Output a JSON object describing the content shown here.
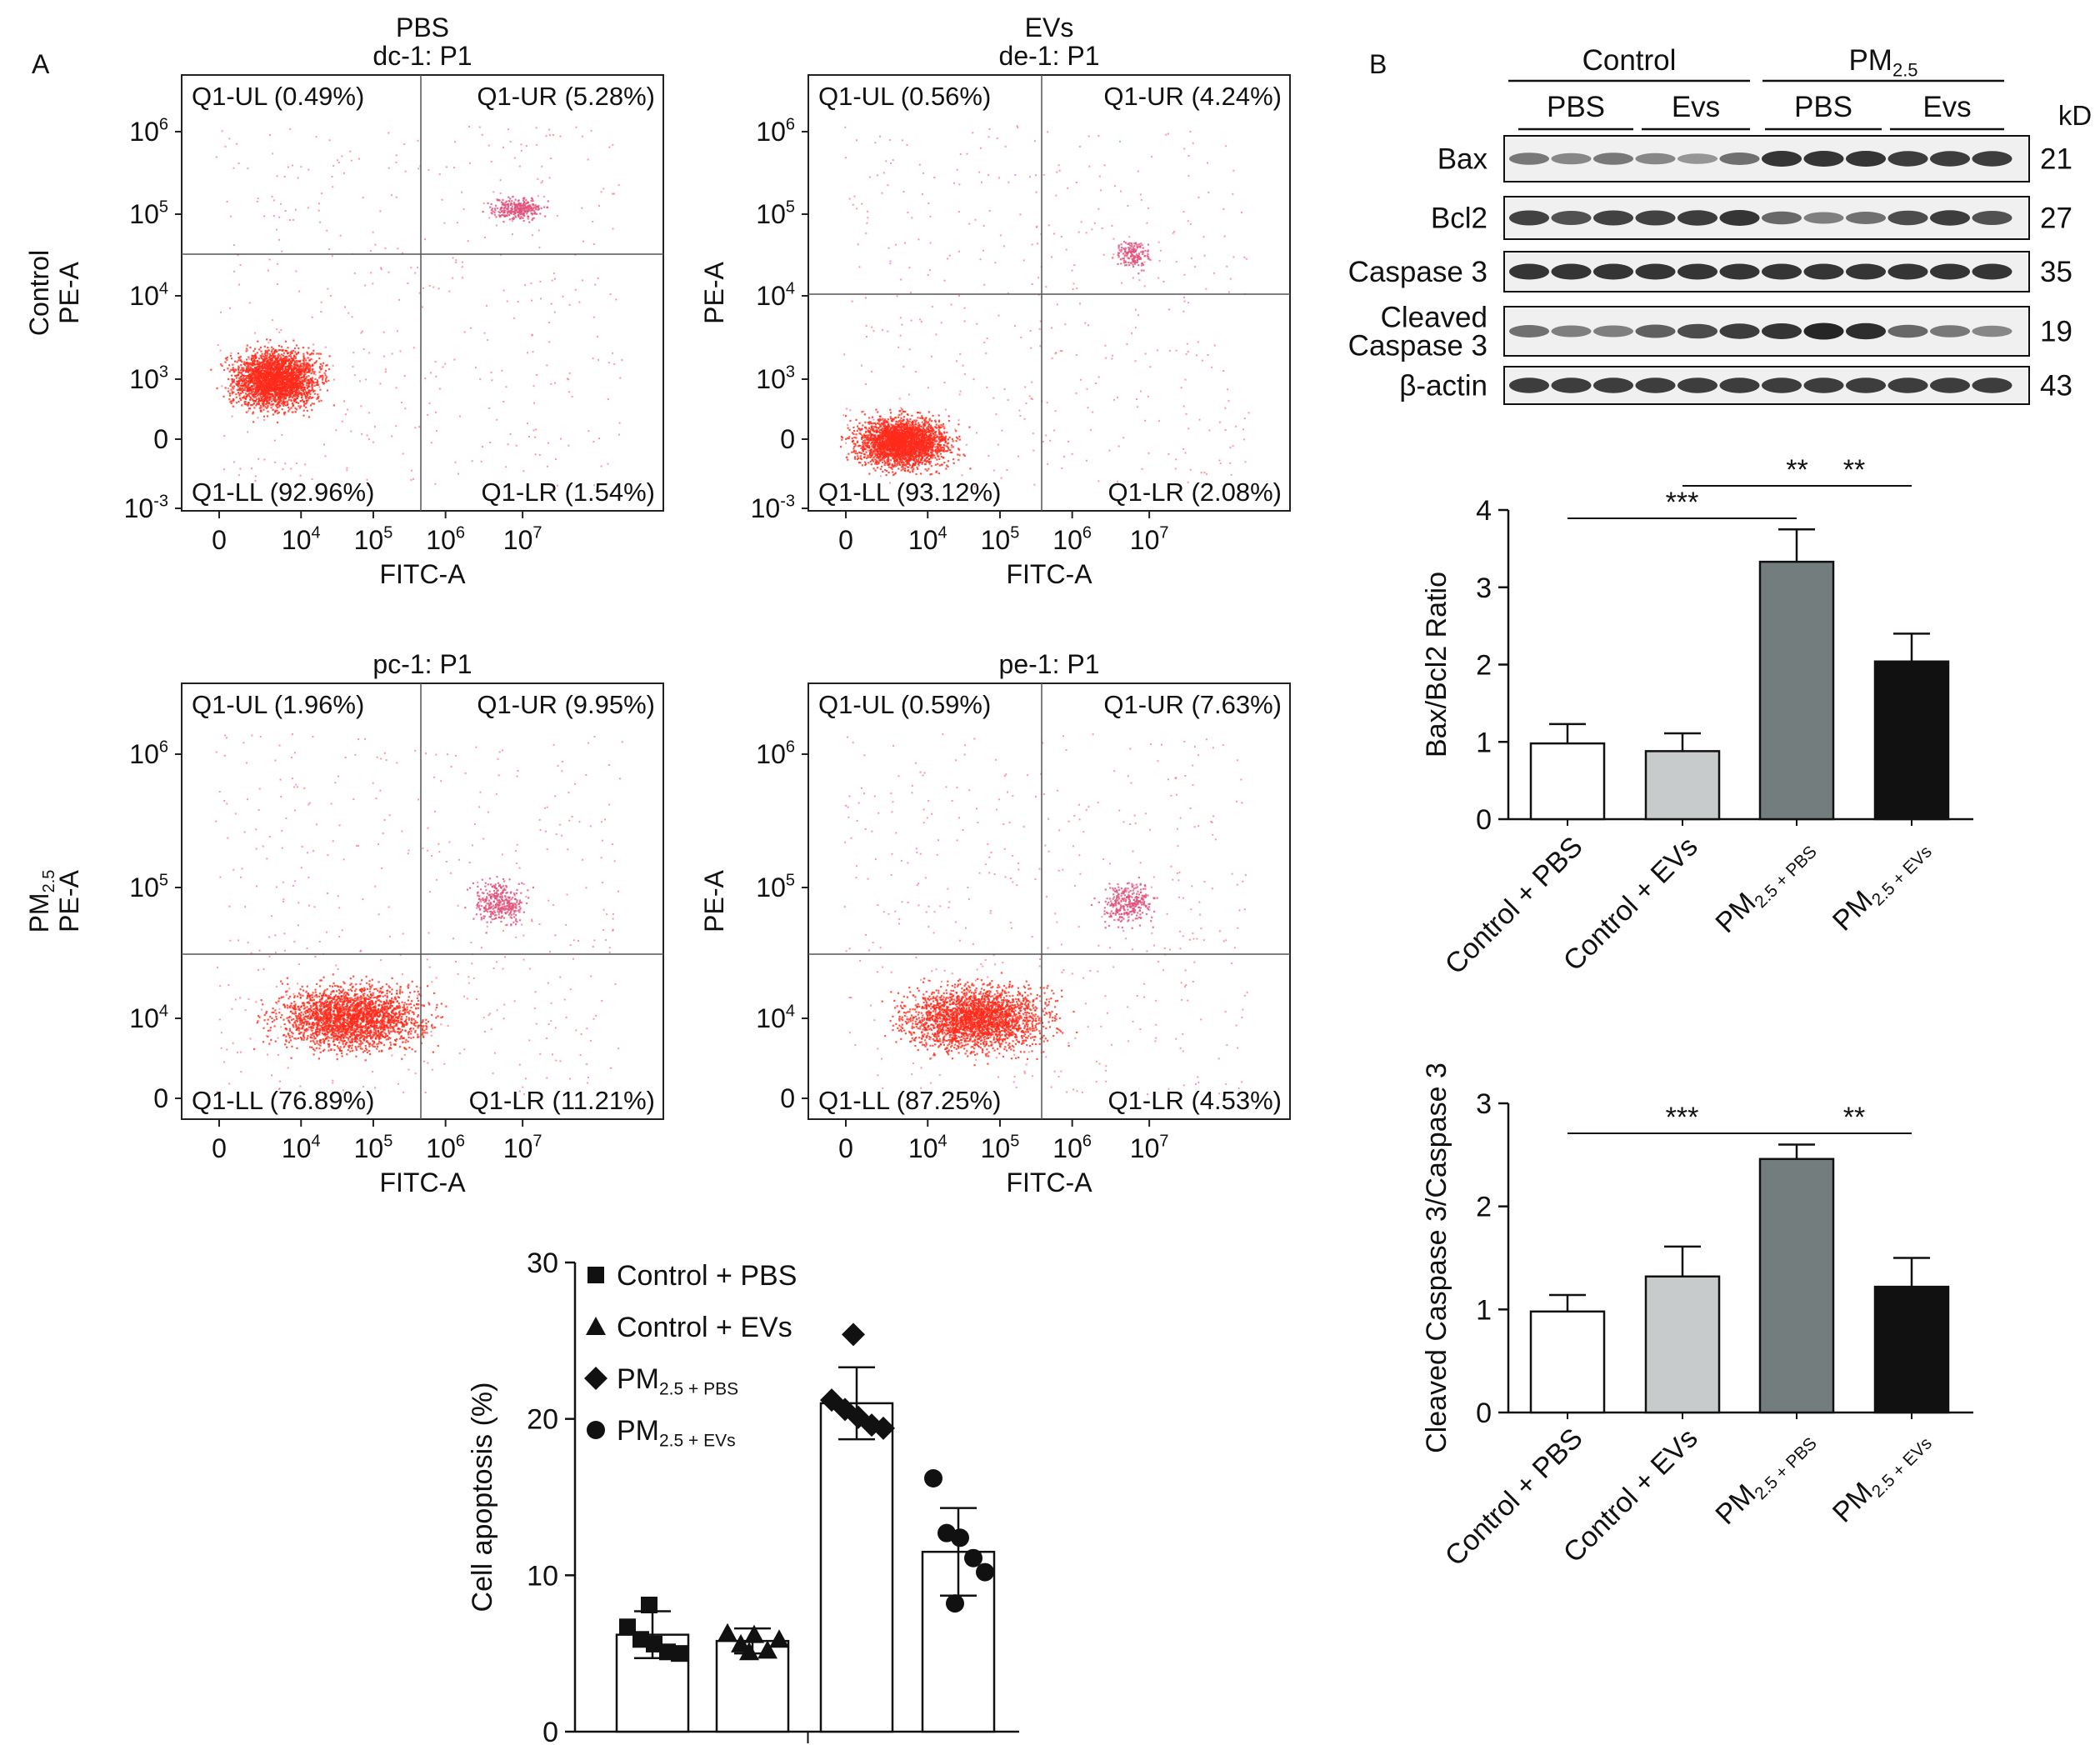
{
  "panel_labels": {
    "a": "A",
    "b": "B"
  },
  "flow_panels": [
    {
      "title_lines": [
        "PBS",
        "dc-1: P1"
      ],
      "ylabel_lines": [
        "Control",
        "PE-A"
      ],
      "xlabel": "FITC-A",
      "y_ticks": [
        "10^6",
        "10^5",
        "10^4",
        "10^3",
        "0",
        "10^-3"
      ],
      "x_ticks": [
        "0",
        "10^4",
        "10^5",
        "10^6",
        "10^7"
      ],
      "quadrants": {
        "ul": "Q1-UL (0.49%)",
        "ur": "Q1-UR (5.28%)",
        "ll": "Q1-LL (92.96%)",
        "lr": "Q1-LR (1.54%)"
      }
    },
    {
      "title_lines": [
        "EVs",
        "de-1: P1"
      ],
      "ylabel_lines": [
        "PE-A"
      ],
      "xlabel": "FITC-A",
      "y_ticks": [
        "10^6",
        "10^5",
        "10^4",
        "10^3",
        "0",
        "10^-3"
      ],
      "x_ticks": [
        "0",
        "10^4",
        "10^5",
        "10^6",
        "10^7"
      ],
      "quadrants": {
        "ul": "Q1-UL (0.56%)",
        "ur": "Q1-UR (4.24%)",
        "ll": "Q1-LL (93.12%)",
        "lr": "Q1-LR (2.08%)"
      }
    },
    {
      "title_lines": [
        "pc-1: P1"
      ],
      "ylabel_lines": [
        "PM_2.5",
        "PE-A"
      ],
      "xlabel": "FITC-A",
      "y_ticks": [
        "10^6",
        "10^5",
        "10^4",
        "0"
      ],
      "x_ticks": [
        "0",
        "10^4",
        "10^5",
        "10^6",
        "10^7"
      ],
      "quadrants": {
        "ul": "Q1-UL (1.96%)",
        "ur": "Q1-UR (9.95%)",
        "ll": "Q1-LL (76.89%)",
        "lr": "Q1-LR (11.21%)"
      }
    },
    {
      "title_lines": [
        "pe-1: P1"
      ],
      "ylabel_lines": [
        "PE-A"
      ],
      "xlabel": "FITC-A",
      "y_ticks": [
        "10^6",
        "10^5",
        "10^4",
        "0"
      ],
      "x_ticks": [
        "0",
        "10^4",
        "10^5",
        "10^6",
        "10^7"
      ],
      "quadrants": {
        "ul": "Q1-UL (0.59%)",
        "ur": "Q1-UR (7.63%)",
        "ll": "Q1-LL (87.25%)",
        "lr": "Q1-LR (4.53%)"
      }
    }
  ],
  "blot": {
    "group_labels": [
      "Control",
      "PM_2.5"
    ],
    "subgroup_labels": [
      "PBS",
      "Evs",
      "PBS",
      "Evs"
    ],
    "unit_label": "kD",
    "rows": [
      {
        "label_lines": [
          "Bax"
        ],
        "kd": "21"
      },
      {
        "label_lines": [
          "Bcl2"
        ],
        "kd": "27"
      },
      {
        "label_lines": [
          "Caspase 3"
        ],
        "kd": "35"
      },
      {
        "label_lines": [
          "Cleaved",
          "Caspase 3"
        ],
        "kd": "19"
      },
      {
        "label_lines": [
          "β-actin"
        ],
        "kd": "43"
      }
    ]
  },
  "chart_data": [
    {
      "type": "bar",
      "categories": [
        "Control + PBS",
        "Control + EVs",
        "PM_2.5 + PBS",
        "PM_2.5 + EVs"
      ],
      "values": [
        0.98,
        0.88,
        3.33,
        2.04
      ],
      "errors": [
        0.25,
        0.23,
        0.42,
        0.36
      ],
      "colors": [
        "#ffffff",
        "#c8cbcb",
        "#737d7e",
        "#111111"
      ],
      "ylabel": "Bax/Bcl2 Ratio",
      "ylim": [
        0,
        4
      ],
      "yticks": [
        0,
        1,
        2,
        3,
        4
      ],
      "significance": [
        {
          "from": 0,
          "to": 2,
          "label": "***"
        },
        {
          "from": 2,
          "to": 3,
          "label": "**"
        },
        {
          "from": 1,
          "to": 3,
          "label": "**"
        }
      ]
    },
    {
      "type": "bar",
      "categories": [
        "Control + PBS",
        "Control + EVs",
        "PM_2.5 + PBS",
        "PM_2.5 + EVs"
      ],
      "values": [
        0.98,
        1.32,
        2.46,
        1.22
      ],
      "errors": [
        0.16,
        0.29,
        0.14,
        0.28
      ],
      "colors": [
        "#ffffff",
        "#c8cbcb",
        "#737d7e",
        "#111111"
      ],
      "ylabel": "Cleaved Caspase 3/Caspase 3",
      "ylim": [
        0,
        3
      ],
      "yticks": [
        0,
        1,
        2,
        3
      ],
      "significance": [
        {
          "from": 0,
          "to": 2,
          "label": "***"
        },
        {
          "from": 2,
          "to": 3,
          "label": "**"
        }
      ]
    },
    {
      "type": "bar",
      "categories": [
        "Control + PBS",
        "Control + EVs",
        "PM_2.5 + PBS",
        "PM_2.5 + EVs"
      ],
      "values": [
        6.2,
        5.8,
        21.0,
        11.5
      ],
      "errors": [
        1.5,
        0.8,
        2.3,
        2.8
      ],
      "colors": [
        "#ffffff",
        "#ffffff",
        "#ffffff",
        "#ffffff"
      ],
      "ylabel": "Cell apoptosis (%)",
      "ylim": [
        0,
        30
      ],
      "yticks": [
        0,
        10,
        20,
        30
      ],
      "series": [
        {
          "name": "Control + PBS",
          "marker": "square",
          "points": [
            6.7,
            5.9,
            5.6,
            5.1,
            5.0,
            8.1
          ]
        },
        {
          "name": "Control + EVs",
          "marker": "triangle",
          "points": [
            6.3,
            5.6,
            6.2,
            5.2,
            5.9,
            5.1
          ]
        },
        {
          "name": "PM_2.5 + PBS",
          "marker": "diamond",
          "points": [
            21.2,
            20.6,
            20.1,
            19.6,
            19.4,
            25.4
          ]
        },
        {
          "name": "PM_2.5 + EVs",
          "marker": "circle",
          "points": [
            16.2,
            12.7,
            12.4,
            11.1,
            10.2,
            8.2
          ]
        }
      ]
    }
  ]
}
